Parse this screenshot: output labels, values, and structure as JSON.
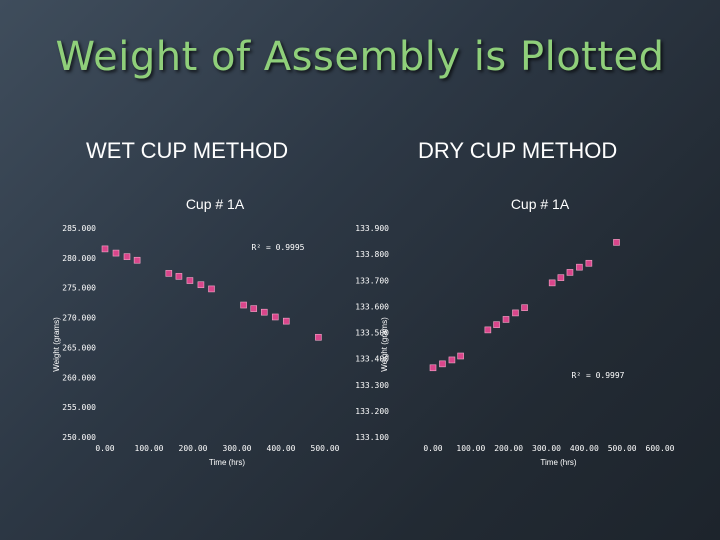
{
  "slide": {
    "title": "Weight of Assembly is Plotted"
  },
  "methods": {
    "wet": "WET CUP METHOD",
    "dry": "DRY CUP METHOD"
  },
  "chart_data": [
    {
      "type": "scatter",
      "title": "Cup # 1A",
      "xlabel": "Time (hrs)",
      "ylabel": "Weight (grams)",
      "xlim": [
        0,
        500
      ],
      "ylim": [
        250,
        285
      ],
      "x_ticks": [
        "0.00",
        "100.00",
        "200.00",
        "300.00",
        "400.00",
        "500.00"
      ],
      "y_ticks": [
        "250.000",
        "255.000",
        "260.000",
        "265.000",
        "270.000",
        "275.000",
        "280.000",
        "285.000"
      ],
      "annotation": "R² = 0.9995",
      "marker_color": "#d9468b",
      "grid": false,
      "legend": "none",
      "points": [
        {
          "x": 0,
          "y": 281.5
        },
        {
          "x": 25,
          "y": 280.8
        },
        {
          "x": 50,
          "y": 280.2
        },
        {
          "x": 73,
          "y": 279.6
        },
        {
          "x": 145,
          "y": 277.4
        },
        {
          "x": 168,
          "y": 276.9
        },
        {
          "x": 193,
          "y": 276.2
        },
        {
          "x": 218,
          "y": 275.5
        },
        {
          "x": 242,
          "y": 274.8
        },
        {
          "x": 315,
          "y": 272.1
        },
        {
          "x": 338,
          "y": 271.5
        },
        {
          "x": 362,
          "y": 270.9
        },
        {
          "x": 387,
          "y": 270.1
        },
        {
          "x": 412,
          "y": 269.4
        },
        {
          "x": 485,
          "y": 266.7
        }
      ]
    },
    {
      "type": "scatter",
      "title": "Cup # 1A",
      "xlabel": "Time (hrs)",
      "ylabel": "Weight (grams)",
      "xlim": [
        0,
        600
      ],
      "ylim": [
        133.1,
        133.9
      ],
      "x_ticks": [
        "0.00",
        "100.00",
        "200.00",
        "300.00",
        "400.00",
        "500.00",
        "600.00"
      ],
      "y_ticks": [
        "133.100",
        "133.200",
        "133.300",
        "133.400",
        "133.500",
        "133.600",
        "133.700",
        "133.800",
        "133.900"
      ],
      "annotation": "R² = 0.9997",
      "marker_color": "#d9468b",
      "grid": false,
      "legend": "none",
      "points": [
        {
          "x": 0,
          "y": 133.365
        },
        {
          "x": 25,
          "y": 133.38
        },
        {
          "x": 50,
          "y": 133.395
        },
        {
          "x": 73,
          "y": 133.41
        },
        {
          "x": 145,
          "y": 133.51
        },
        {
          "x": 168,
          "y": 133.53
        },
        {
          "x": 193,
          "y": 133.55
        },
        {
          "x": 218,
          "y": 133.575
        },
        {
          "x": 242,
          "y": 133.595
        },
        {
          "x": 315,
          "y": 133.69
        },
        {
          "x": 338,
          "y": 133.71
        },
        {
          "x": 362,
          "y": 133.73
        },
        {
          "x": 387,
          "y": 133.75
        },
        {
          "x": 412,
          "y": 133.765
        },
        {
          "x": 485,
          "y": 133.845
        }
      ]
    }
  ]
}
